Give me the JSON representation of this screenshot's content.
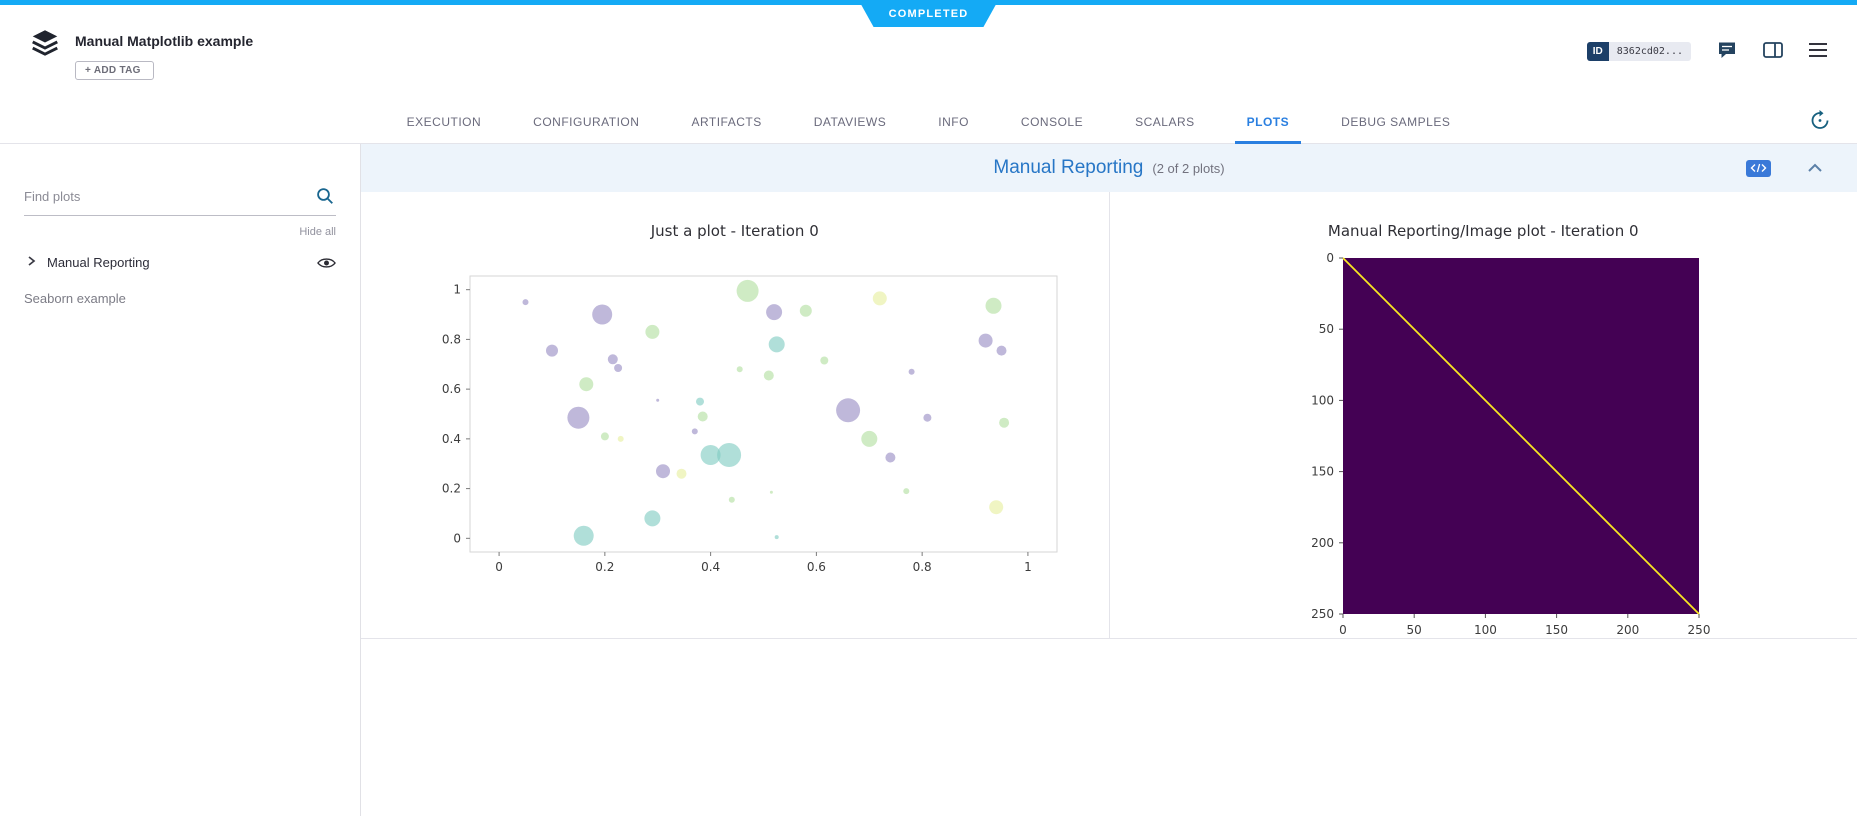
{
  "status": {
    "label": "COMPLETED",
    "color": "#14aaf5"
  },
  "header": {
    "title": "Manual Matplotlib example",
    "add_tag": "+ ADD TAG",
    "id_label": "ID",
    "id_value": "8362cd02..."
  },
  "tabs": {
    "items": [
      "EXECUTION",
      "CONFIGURATION",
      "ARTIFACTS",
      "DATAVIEWS",
      "INFO",
      "CONSOLE",
      "SCALARS",
      "PLOTS",
      "DEBUG SAMPLES"
    ],
    "active": "PLOTS"
  },
  "sidebar": {
    "search_placeholder": "Find plots",
    "hide_all": "Hide all",
    "groups": [
      {
        "label": "Manual Reporting"
      }
    ],
    "items": [
      {
        "label": "Seaborn example"
      }
    ]
  },
  "main": {
    "group_title": "Manual Reporting",
    "group_count": "(2 of 2 plots)"
  },
  "chart_data": [
    {
      "type": "scatter",
      "title": "Just a plot - Iteration 0",
      "xlabel": "",
      "ylabel": "",
      "xlim": [
        0,
        1
      ],
      "ylim": [
        0,
        1
      ],
      "xticks": [
        0,
        0.2,
        0.4,
        0.6,
        0.8,
        1
      ],
      "yticks": [
        0,
        0.2,
        0.4,
        0.6,
        0.8,
        1
      ],
      "grid": false,
      "legend": false,
      "palette": {
        "0": "#988dc4",
        "1": "#b2dfa0",
        "2": "#e7ef9e",
        "3": "#80cbc2"
      },
      "point_alpha": 0.62,
      "points": [
        {
          "x": 0.05,
          "y": 0.95,
          "r": 3,
          "c": 0
        },
        {
          "x": 0.1,
          "y": 0.755,
          "r": 6,
          "c": 0
        },
        {
          "x": 0.165,
          "y": 0.62,
          "r": 7,
          "c": 1
        },
        {
          "x": 0.15,
          "y": 0.485,
          "r": 11,
          "c": 0
        },
        {
          "x": 0.16,
          "y": 0.01,
          "r": 10,
          "c": 3
        },
        {
          "x": 0.195,
          "y": 0.9,
          "r": 10,
          "c": 0
        },
        {
          "x": 0.215,
          "y": 0.72,
          "r": 5,
          "c": 0
        },
        {
          "x": 0.225,
          "y": 0.685,
          "r": 4,
          "c": 0
        },
        {
          "x": 0.2,
          "y": 0.41,
          "r": 4,
          "c": 1
        },
        {
          "x": 0.23,
          "y": 0.4,
          "r": 3,
          "c": 2
        },
        {
          "x": 0.29,
          "y": 0.83,
          "r": 7,
          "c": 1
        },
        {
          "x": 0.3,
          "y": 0.555,
          "r": 1.5,
          "c": 0
        },
        {
          "x": 0.29,
          "y": 0.08,
          "r": 8,
          "c": 3
        },
        {
          "x": 0.31,
          "y": 0.27,
          "r": 7,
          "c": 0
        },
        {
          "x": 0.345,
          "y": 0.26,
          "r": 5,
          "c": 2
        },
        {
          "x": 0.38,
          "y": 0.55,
          "r": 4,
          "c": 3
        },
        {
          "x": 0.385,
          "y": 0.49,
          "r": 5,
          "c": 1
        },
        {
          "x": 0.37,
          "y": 0.43,
          "r": 3,
          "c": 0
        },
        {
          "x": 0.4,
          "y": 0.335,
          "r": 10,
          "c": 3
        },
        {
          "x": 0.435,
          "y": 0.335,
          "r": 12,
          "c": 3
        },
        {
          "x": 0.44,
          "y": 0.155,
          "r": 3,
          "c": 1
        },
        {
          "x": 0.455,
          "y": 0.68,
          "r": 3,
          "c": 1
        },
        {
          "x": 0.47,
          "y": 0.995,
          "r": 11,
          "c": 1
        },
        {
          "x": 0.52,
          "y": 0.91,
          "r": 8,
          "c": 0
        },
        {
          "x": 0.525,
          "y": 0.78,
          "r": 8,
          "c": 3
        },
        {
          "x": 0.51,
          "y": 0.655,
          "r": 5,
          "c": 1
        },
        {
          "x": 0.515,
          "y": 0.185,
          "r": 1.5,
          "c": 1
        },
        {
          "x": 0.525,
          "y": 0.005,
          "r": 2,
          "c": 3
        },
        {
          "x": 0.58,
          "y": 0.915,
          "r": 6,
          "c": 1
        },
        {
          "x": 0.615,
          "y": 0.715,
          "r": 4,
          "c": 1
        },
        {
          "x": 0.66,
          "y": 0.515,
          "r": 12,
          "c": 0
        },
        {
          "x": 0.72,
          "y": 0.965,
          "r": 7,
          "c": 2
        },
        {
          "x": 0.7,
          "y": 0.4,
          "r": 8,
          "c": 1
        },
        {
          "x": 0.74,
          "y": 0.325,
          "r": 5,
          "c": 0
        },
        {
          "x": 0.78,
          "y": 0.67,
          "r": 3,
          "c": 0
        },
        {
          "x": 0.77,
          "y": 0.19,
          "r": 3,
          "c": 1
        },
        {
          "x": 0.81,
          "y": 0.485,
          "r": 4,
          "c": 0
        },
        {
          "x": 0.935,
          "y": 0.935,
          "r": 8,
          "c": 1
        },
        {
          "x": 0.92,
          "y": 0.795,
          "r": 7,
          "c": 0
        },
        {
          "x": 0.95,
          "y": 0.755,
          "r": 5,
          "c": 0
        },
        {
          "x": 0.955,
          "y": 0.465,
          "r": 5,
          "c": 1
        },
        {
          "x": 0.94,
          "y": 0.125,
          "r": 7,
          "c": 2
        }
      ]
    },
    {
      "type": "heatmap",
      "title": "Manual Reporting/Image plot - Iteration 0",
      "xlabel": "",
      "ylabel": "",
      "xlim": [
        0,
        250
      ],
      "ylim": [
        250,
        0
      ],
      "xticks": [
        0,
        50,
        100,
        150,
        200,
        250
      ],
      "yticks": [
        0,
        50,
        100,
        150,
        200,
        250
      ],
      "background": "#440154",
      "diagonal_color": "#f9e721",
      "description": "250x250 viridis image, uniform dark purple with yellow main diagonal from (0,0) to (250,250)"
    }
  ]
}
